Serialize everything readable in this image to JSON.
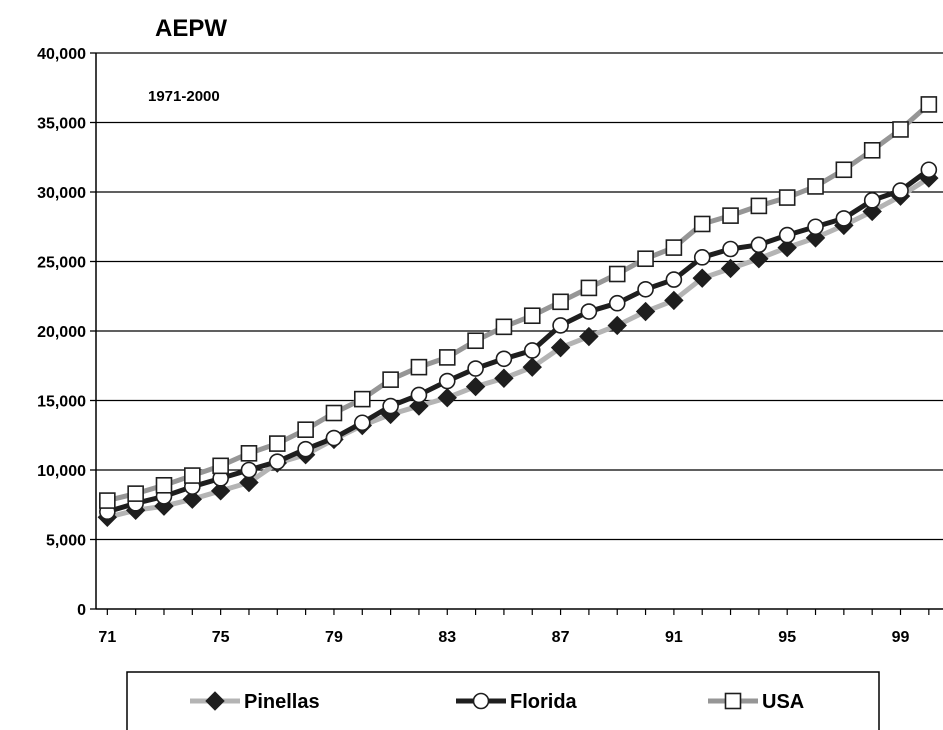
{
  "chart_data": {
    "type": "line",
    "title": "AEPW",
    "subtitle": "1971-2000",
    "xlabel": "",
    "ylabel": "",
    "x": [
      71,
      72,
      73,
      74,
      75,
      76,
      77,
      78,
      79,
      80,
      81,
      82,
      83,
      84,
      85,
      86,
      87,
      88,
      89,
      90,
      91,
      92,
      93,
      94,
      95,
      96,
      97,
      98,
      99,
      100
    ],
    "x_tick_labels": [
      "71",
      "75",
      "79",
      "83",
      "87",
      "91",
      "95",
      "99"
    ],
    "x_tick_values": [
      71,
      75,
      79,
      83,
      87,
      91,
      95,
      99
    ],
    "xlim": [
      70.6,
      100.5
    ],
    "y_ticks": [
      0,
      5000,
      10000,
      15000,
      20000,
      25000,
      30000,
      35000,
      40000
    ],
    "y_tick_labels": [
      "0",
      "5,000",
      "10,000",
      "15,000",
      "20,000",
      "25,000",
      "30,000",
      "35,000",
      "40,000"
    ],
    "ylim": [
      0,
      40000
    ],
    "grid": "horizontal",
    "legend_position": "bottom",
    "series": [
      {
        "name": "Pinellas",
        "marker": "diamond",
        "color": "#b4b4b4",
        "marker_color": "#1e1e1e",
        "values": [
          6600,
          7100,
          7400,
          7900,
          8500,
          9100,
          10500,
          11100,
          12200,
          13200,
          14000,
          14600,
          15200,
          16000,
          16600,
          17400,
          18800,
          19600,
          20400,
          21400,
          22200,
          23800,
          24500,
          25200,
          26000,
          26700,
          27600,
          28600,
          29700,
          31000
        ]
      },
      {
        "name": "Florida",
        "marker": "circle",
        "color": "#1e1e1e",
        "marker_color": "#ffffff",
        "values": [
          7000,
          7600,
          8100,
          8800,
          9400,
          10000,
          10600,
          11500,
          12300,
          13400,
          14600,
          15400,
          16400,
          17300,
          18000,
          18600,
          20400,
          21400,
          22000,
          23000,
          23700,
          25300,
          25900,
          26200,
          26900,
          27500,
          28100,
          29400,
          30100,
          31600
        ]
      },
      {
        "name": "USA",
        "marker": "square",
        "color": "#969696",
        "marker_color": "#ffffff",
        "values": [
          7800,
          8300,
          8900,
          9600,
          10300,
          11200,
          11900,
          12900,
          14100,
          15100,
          16500,
          17400,
          18100,
          19300,
          20300,
          21100,
          22100,
          23100,
          24100,
          25200,
          26000,
          27700,
          28300,
          29000,
          29600,
          30400,
          31600,
          33000,
          34500,
          36300
        ]
      }
    ]
  }
}
